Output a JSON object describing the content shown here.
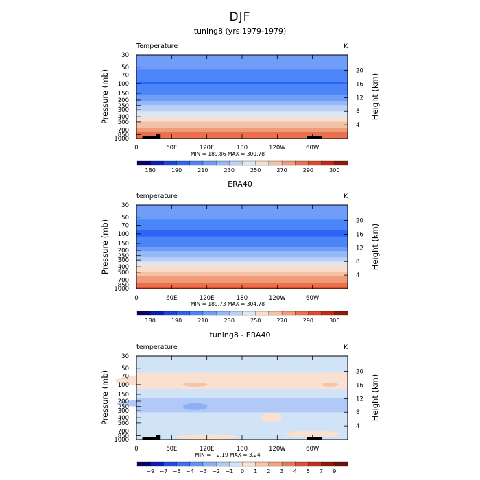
{
  "figure_title": "DJF",
  "chart_data": [
    {
      "type": "heatmap",
      "title": "tuning8 (yrs 1979-1979)",
      "field_label": "Temperature",
      "units": "K",
      "ylabel": "Pressure (mb)",
      "y2label": "Height (km)",
      "x_ticks": [
        "0",
        "60E",
        "120E",
        "180",
        "120W",
        "60W"
      ],
      "y_ticks": [
        "30",
        "50",
        "70",
        "100",
        "150",
        "200",
        "250",
        "300",
        "400",
        "500",
        "700",
        "850",
        "1000"
      ],
      "y2_ticks": [
        "20",
        "16",
        "12",
        "8",
        "4"
      ],
      "xlim": [
        0,
        360
      ],
      "ylim": [
        1000,
        30
      ],
      "stats_text": "MIN = 189.86   MAX = 300.78",
      "min": 189.86,
      "max": 300.78,
      "colorbar_ticks": [
        "180",
        "190",
        "210",
        "230",
        "250",
        "270",
        "290",
        "300"
      ],
      "profile": [
        {
          "p": 30,
          "value": 218
        },
        {
          "p": 50,
          "value": 213
        },
        {
          "p": 70,
          "value": 205
        },
        {
          "p": 100,
          "value": 199
        },
        {
          "p": 150,
          "value": 206
        },
        {
          "p": 200,
          "value": 218
        },
        {
          "p": 250,
          "value": 229
        },
        {
          "p": 300,
          "value": 236
        },
        {
          "p": 400,
          "value": 250
        },
        {
          "p": 500,
          "value": 260
        },
        {
          "p": 700,
          "value": 275
        },
        {
          "p": 850,
          "value": 284
        },
        {
          "p": 1000,
          "value": 292
        }
      ]
    },
    {
      "type": "heatmap",
      "title": "ERA40",
      "field_label": "temperature",
      "units": "K",
      "ylabel": "Pressure (mb)",
      "y2label": "Height (km)",
      "x_ticks": [
        "0",
        "60E",
        "120E",
        "180",
        "120W",
        "60W"
      ],
      "y_ticks": [
        "30",
        "50",
        "70",
        "100",
        "150",
        "200",
        "250",
        "300",
        "400",
        "500",
        "700",
        "850",
        "1000"
      ],
      "y2_ticks": [
        "20",
        "16",
        "12",
        "8",
        "4"
      ],
      "xlim": [
        0,
        360
      ],
      "ylim": [
        1000,
        30
      ],
      "stats_text": "MIN = 189.73   MAX = 304.78",
      "min": 189.73,
      "max": 304.78,
      "colorbar_ticks": [
        "180",
        "190",
        "210",
        "230",
        "250",
        "270",
        "290",
        "300"
      ],
      "profile": [
        {
          "p": 30,
          "value": 219
        },
        {
          "p": 50,
          "value": 212
        },
        {
          "p": 70,
          "value": 204
        },
        {
          "p": 100,
          "value": 197
        },
        {
          "p": 150,
          "value": 205
        },
        {
          "p": 200,
          "value": 217
        },
        {
          "p": 250,
          "value": 228
        },
        {
          "p": 300,
          "value": 237
        },
        {
          "p": 400,
          "value": 251
        },
        {
          "p": 500,
          "value": 261
        },
        {
          "p": 700,
          "value": 276
        },
        {
          "p": 850,
          "value": 285
        },
        {
          "p": 1000,
          "value": 294
        }
      ]
    },
    {
      "type": "heatmap",
      "title": "tuning8 - ERA40",
      "field_label": "temperature",
      "units": "K",
      "ylabel": "Pressure (mb)",
      "y2label": "Height (km)",
      "x_ticks": [
        "0",
        "60E",
        "120E",
        "180",
        "120W",
        "60W"
      ],
      "y_ticks": [
        "30",
        "50",
        "70",
        "100",
        "150",
        "200",
        "250",
        "300",
        "400",
        "500",
        "700",
        "850",
        "1000"
      ],
      "y2_ticks": [
        "20",
        "16",
        "12",
        "8",
        "4"
      ],
      "xlim": [
        0,
        360
      ],
      "ylim": [
        1000,
        30
      ],
      "stats_text": "MIN =  −2.19   MAX =   3.24",
      "min": -2.19,
      "max": 3.24,
      "colorbar_ticks": [
        "−9",
        "−7",
        "−5",
        "−4",
        "−3",
        "−2",
        "−1",
        "0",
        "1",
        "2",
        "3",
        "4",
        "5",
        "7",
        "9"
      ],
      "profile": [
        {
          "p": 30,
          "value": -0.5
        },
        {
          "p": 50,
          "value": -0.5
        },
        {
          "p": 70,
          "value": 0.4
        },
        {
          "p": 100,
          "value": 0.6
        },
        {
          "p": 150,
          "value": -0.6
        },
        {
          "p": 200,
          "value": -1.5
        },
        {
          "p": 250,
          "value": -1.2
        },
        {
          "p": 300,
          "value": -1.1
        },
        {
          "p": 400,
          "value": -0.5
        },
        {
          "p": 500,
          "value": -0.5
        },
        {
          "p": 700,
          "value": -0.6
        },
        {
          "p": 850,
          "value": -0.7
        },
        {
          "p": 1000,
          "value": -0.7
        }
      ]
    }
  ],
  "colors": {
    "temperature_palette": [
      "#04046b",
      "#0b1fb4",
      "#1a46e0",
      "#2d66f5",
      "#4b85f7",
      "#6f9df8",
      "#96b7f8",
      "#bcd0f6",
      "#dde7f3",
      "#f8ddcc",
      "#f5c1a6",
      "#f19c78",
      "#ea7150",
      "#db4b2c",
      "#c22a15",
      "#8e1a0a"
    ],
    "difference_palette": [
      "#04046b",
      "#0b1fb4",
      "#1f4de6",
      "#3a74f5",
      "#6193f6",
      "#8ab0f7",
      "#b0c9f7",
      "#d1e3f6",
      "#f9e0d0",
      "#f5c3a8",
      "#f0a283",
      "#e97a58",
      "#dd5233",
      "#c42e18",
      "#8e1a0a",
      "#6e1206"
    ]
  }
}
